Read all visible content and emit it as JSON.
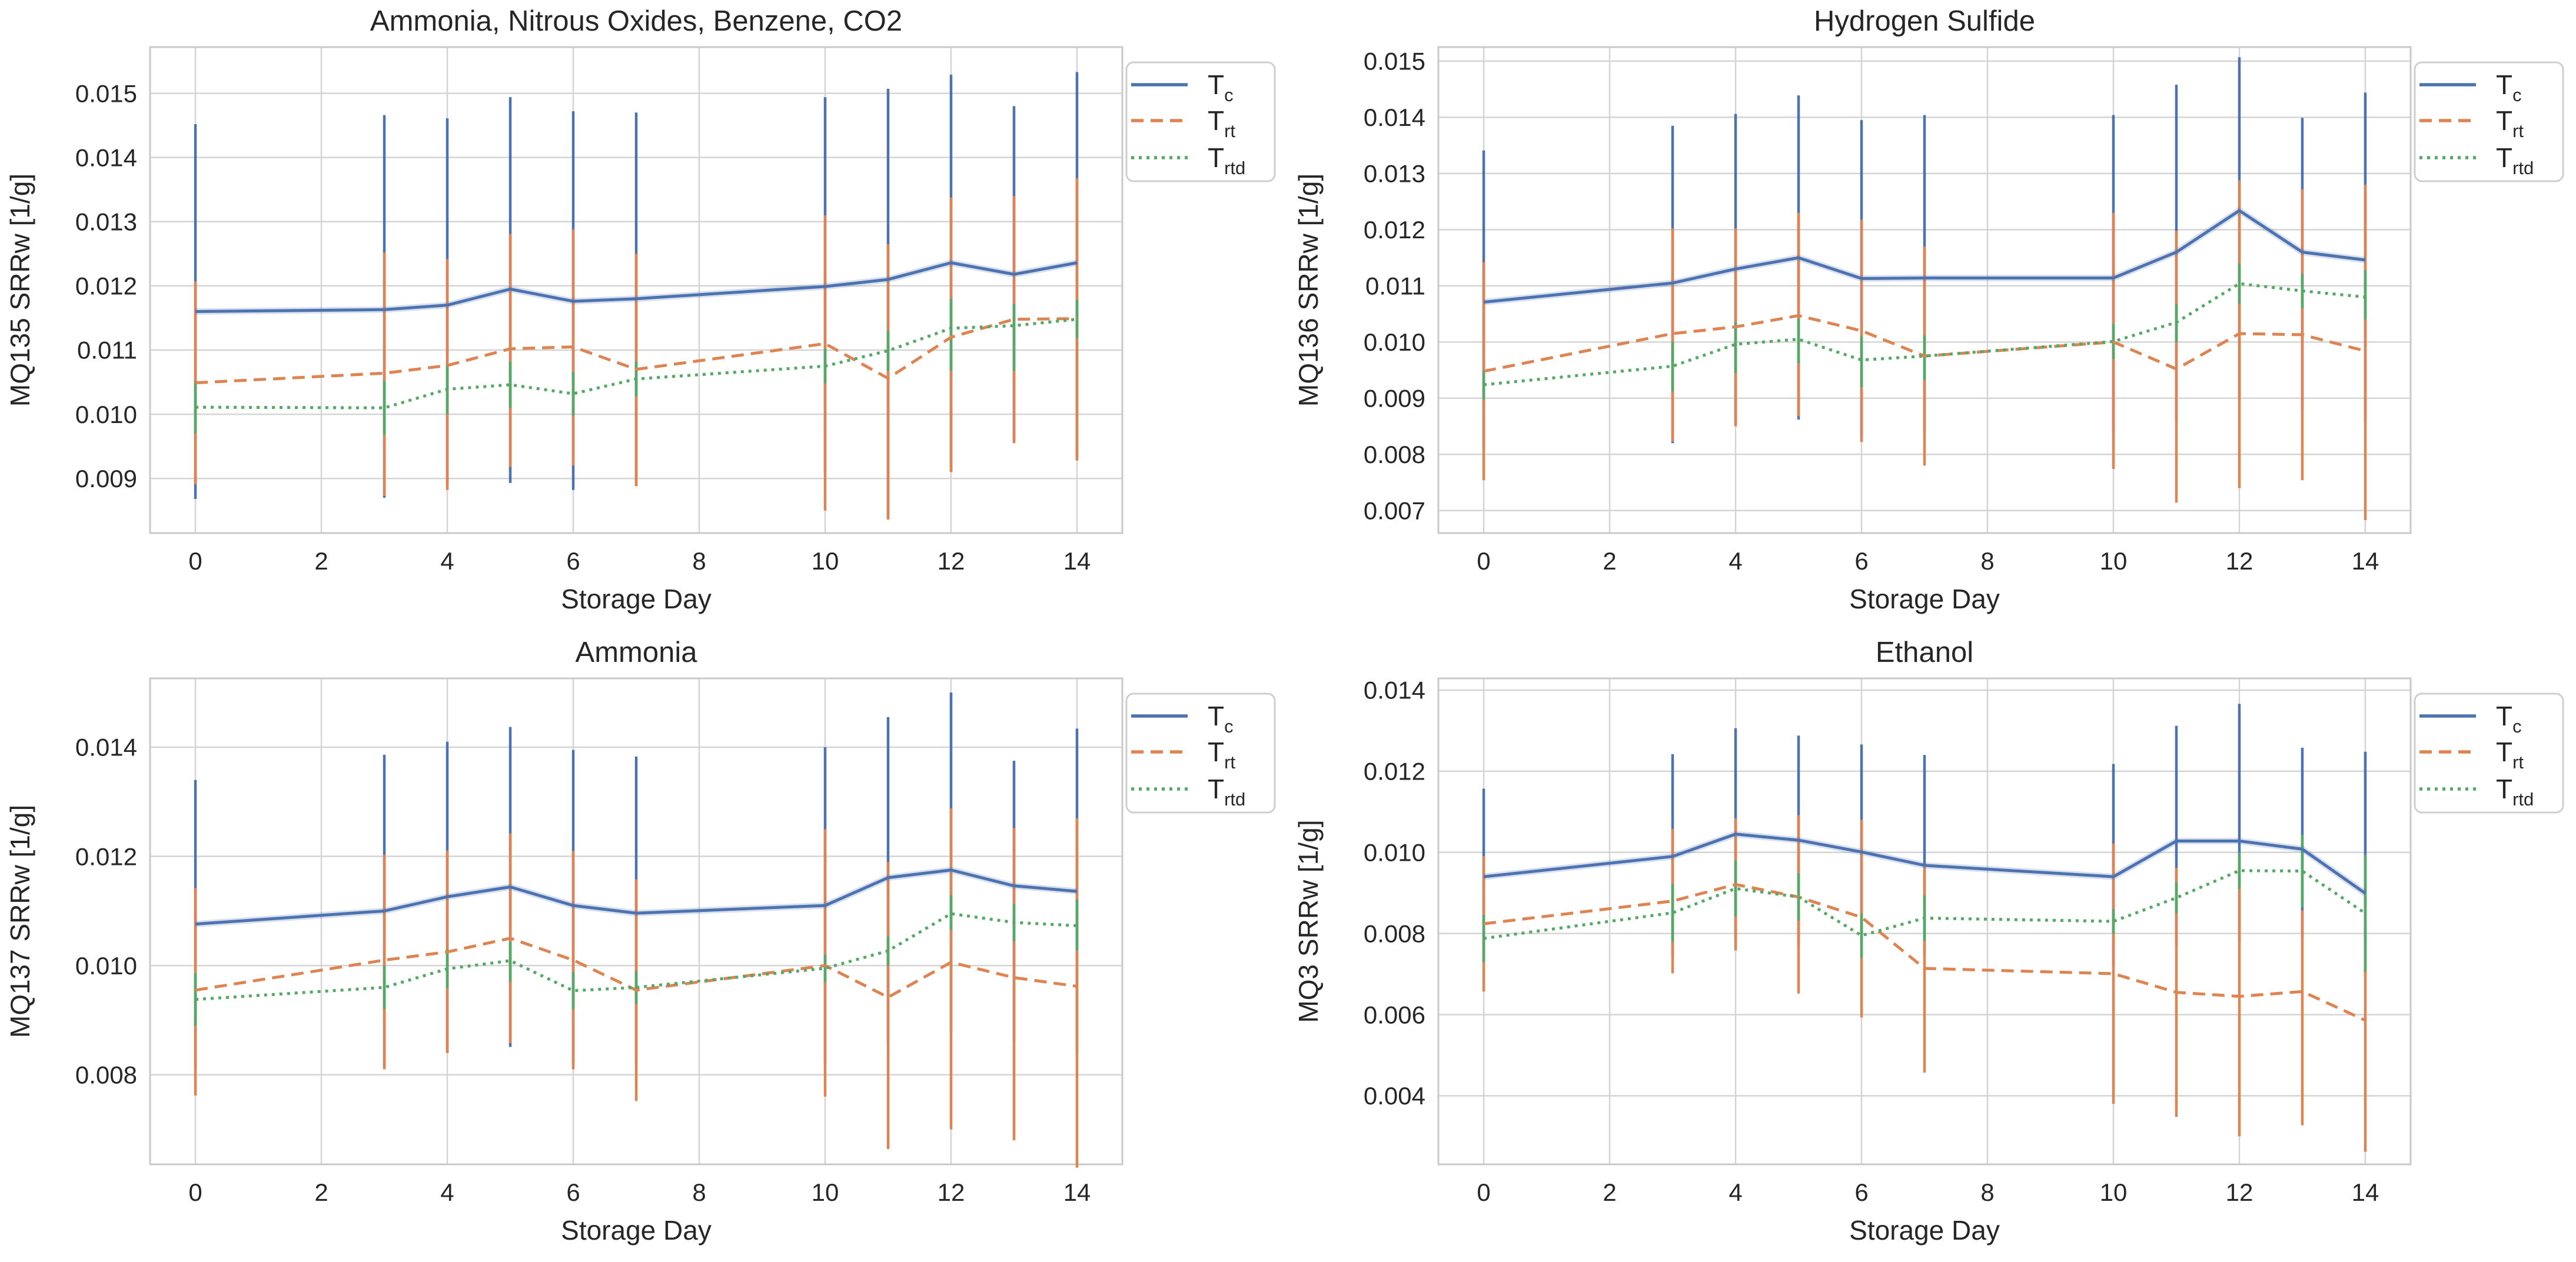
{
  "figure": {
    "background": "#ffffff",
    "grid_color": "#d4d4d4",
    "spine_color": "#c9c9c9",
    "text_color": "#262626"
  },
  "chart_data": {
    "type": "line",
    "grid": true,
    "legend_position": "outside-right-top",
    "xlabel": "Storage Day",
    "x": [
      0,
      3,
      4,
      5,
      6,
      7,
      10,
      11,
      12,
      13,
      14
    ],
    "xticks": [
      0,
      2,
      4,
      6,
      8,
      10,
      12,
      14
    ],
    "xtick_labels": [
      "0",
      "2",
      "4",
      "6",
      "8",
      "10",
      "12",
      "14"
    ],
    "xlim": [
      -0.72,
      14.72
    ],
    "series_meta": [
      {
        "id": "Tc",
        "legend_main": "T",
        "legend_sub": "c",
        "color": "#4C72B0",
        "style": "solid"
      },
      {
        "id": "Trt",
        "legend_main": "T",
        "legend_sub": "rt",
        "color": "#DD8452",
        "style": "dashed"
      },
      {
        "id": "Trtd",
        "legend_main": "T",
        "legend_sub": "rtd",
        "color": "#55A868",
        "style": "dotted"
      }
    ],
    "charts": [
      {
        "position": "top-left",
        "title": "Ammonia, Nitrous Oxides, Benzene, CO2",
        "ylabel": "MQ135 SRRw [1/g]",
        "ylim": [
          0.00815,
          0.01572
        ],
        "ytick_values": [
          0.009,
          0.01,
          0.011,
          0.012,
          0.013,
          0.014,
          0.015
        ],
        "ytick_labels": [
          "0.009",
          "0.010",
          "0.011",
          "0.012",
          "0.013",
          "0.014",
          "0.015"
        ],
        "series": {
          "Tc": {
            "values": [
              0.0116,
              0.01163,
              0.0117,
              0.01195,
              0.01176,
              0.0118,
              0.01199,
              0.0121,
              0.01236,
              0.01218,
              0.01236
            ],
            "err_lo": [
              0.00868,
              0.0087,
              0.0089,
              0.00893,
              0.00882,
              0.0089,
              0.0091,
              0.00838,
              0.00912,
              0.00958,
              0.0093
            ],
            "err_hi": [
              0.01452,
              0.01466,
              0.01461,
              0.01494,
              0.01472,
              0.0147,
              0.01494,
              0.01507,
              0.01529,
              0.0148,
              0.01533
            ]
          },
          "Trt": {
            "values": [
              0.01049,
              0.01064,
              0.01076,
              0.01102,
              0.01105,
              0.0107,
              0.0111,
              0.01056,
              0.0112,
              0.01148,
              0.01149
            ],
            "err_lo": [
              0.00891,
              0.00873,
              0.00882,
              0.00918,
              0.0092,
              0.00888,
              0.0085,
              0.00836,
              0.0091,
              0.00955,
              0.00928
            ],
            "err_hi": [
              0.01207,
              0.01252,
              0.01242,
              0.01281,
              0.01288,
              0.0125,
              0.0131,
              0.01265,
              0.01338,
              0.0134,
              0.01368
            ]
          },
          "Trtd": {
            "values": [
              0.01011,
              0.0101,
              0.01039,
              0.01046,
              0.01032,
              0.01055,
              0.01075,
              0.01099,
              0.01134,
              0.01138,
              0.01148
            ],
            "err_lo": [
              0.0097,
              0.00968,
              0.01,
              0.0101,
              0.00998,
              0.01028,
              0.01048,
              0.01068,
              0.01068,
              0.01068,
              0.01118
            ],
            "err_hi": [
              0.01052,
              0.01052,
              0.01078,
              0.01082,
              0.01066,
              0.01082,
              0.01102,
              0.0113,
              0.0118,
              0.01172,
              0.01178
            ]
          }
        }
      },
      {
        "position": "top-right",
        "title": "Hydrogen Sulfide",
        "ylabel": "MQ136 SRRw [1/g]",
        "ylim": [
          0.0066,
          0.01525
        ],
        "ytick_values": [
          0.007,
          0.008,
          0.009,
          0.01,
          0.011,
          0.012,
          0.013,
          0.014,
          0.015
        ],
        "ytick_labels": [
          "0.007",
          "0.008",
          "0.009",
          "0.010",
          "0.011",
          "0.012",
          "0.013",
          "0.014",
          "0.015"
        ],
        "series": {
          "Tc": {
            "values": [
              0.01071,
              0.01105,
              0.0113,
              0.0115,
              0.01113,
              0.01114,
              0.01114,
              0.0116,
              0.01234,
              0.0116,
              0.01146
            ],
            "err_lo": [
              0.00808,
              0.0082,
              0.00855,
              0.00862,
              0.0083,
              0.00838,
              0.0084,
              0.00858,
              0.009,
              0.0088,
              0.00856
            ],
            "err_hi": [
              0.01341,
              0.01385,
              0.01406,
              0.01439,
              0.01395,
              0.01404,
              0.01404,
              0.01458,
              0.01507,
              0.01399,
              0.01444
            ]
          },
          "Trt": {
            "values": [
              0.00948,
              0.01015,
              0.01027,
              0.01047,
              0.0102,
              0.00975,
              0.01,
              0.00952,
              0.01015,
              0.01013,
              0.00984
            ],
            "err_lo": [
              0.00754,
              0.00823,
              0.0085,
              0.00868,
              0.00822,
              0.0078,
              0.00774,
              0.00714,
              0.0074,
              0.00754,
              0.00683
            ],
            "err_hi": [
              0.01142,
              0.01202,
              0.01202,
              0.0123,
              0.01218,
              0.0117,
              0.0123,
              0.01198,
              0.01288,
              0.01272,
              0.0128
            ]
          },
          "Trtd": {
            "values": [
              0.00924,
              0.00957,
              0.00996,
              0.01005,
              0.00968,
              0.00975,
              0.01001,
              0.01035,
              0.01104,
              0.01091,
              0.0108
            ],
            "err_lo": [
              0.00898,
              0.00912,
              0.00945,
              0.00962,
              0.0092,
              0.00932,
              0.0097,
              0.01,
              0.01068,
              0.0106,
              0.0104
            ],
            "err_hi": [
              0.0095,
              0.01,
              0.01035,
              0.01042,
              0.0101,
              0.01012,
              0.01032,
              0.01068,
              0.0114,
              0.01122,
              0.01128
            ]
          }
        }
      },
      {
        "position": "bottom-left",
        "title": "Ammonia",
        "ylabel": "MQ137 SRRw [1/g]",
        "ylim": [
          0.00636,
          0.01526
        ],
        "ytick_values": [
          0.008,
          0.01,
          0.012,
          0.014
        ],
        "ytick_labels": [
          "0.008",
          "0.010",
          "0.012",
          "0.014"
        ],
        "series": {
          "Tc": {
            "values": [
              0.01076,
              0.011,
              0.01126,
              0.01144,
              0.0111,
              0.01096,
              0.0111,
              0.01161,
              0.01175,
              0.01146,
              0.01136
            ],
            "err_lo": [
              0.00812,
              0.00812,
              0.0084,
              0.00851,
              0.00822,
              0.0082,
              0.00822,
              0.0086,
              0.0088,
              0.0086,
              0.0084
            ],
            "err_hi": [
              0.0134,
              0.01386,
              0.0141,
              0.01437,
              0.01395,
              0.01383,
              0.014,
              0.01455,
              0.015,
              0.01375,
              0.01434
            ]
          },
          "Trt": {
            "values": [
              0.00955,
              0.0101,
              0.01025,
              0.0105,
              0.0101,
              0.00955,
              0.01,
              0.00942,
              0.01006,
              0.00978,
              0.00962
            ],
            "err_lo": [
              0.00762,
              0.0081,
              0.0084,
              0.00858,
              0.0081,
              0.00752,
              0.0076,
              0.00664,
              0.007,
              0.0068,
              0.0063
            ],
            "err_hi": [
              0.01142,
              0.01203,
              0.01211,
              0.01242,
              0.0121,
              0.01158,
              0.0125,
              0.0119,
              0.01288,
              0.01252,
              0.0127
            ]
          },
          "Trtd": {
            "values": [
              0.00938,
              0.0096,
              0.00994,
              0.01009,
              0.00954,
              0.0096,
              0.00995,
              0.01027,
              0.01095,
              0.01079,
              0.01073
            ],
            "err_lo": [
              0.0089,
              0.0092,
              0.00958,
              0.0097,
              0.0092,
              0.0093,
              0.0097,
              0.01,
              0.01065,
              0.01044,
              0.01028
            ],
            "err_hi": [
              0.00986,
              0.01,
              0.0103,
              0.01044,
              0.00988,
              0.0099,
              0.0102,
              0.01053,
              0.01129,
              0.01113,
              0.01121
            ]
          }
        }
      },
      {
        "position": "bottom-right",
        "title": "Ethanol",
        "ylabel": "MQ3 SRRw [1/g]",
        "ylim": [
          0.00231,
          0.01429
        ],
        "ytick_values": [
          0.004,
          0.006,
          0.008,
          0.01,
          0.012,
          0.014
        ],
        "ytick_labels": [
          "0.004",
          "0.006",
          "0.008",
          "0.010",
          "0.012",
          "0.014"
        ],
        "series": {
          "Tc": {
            "values": [
              0.0094,
              0.0099,
              0.01045,
              0.0103,
              0.01001,
              0.00968,
              0.0094,
              0.01028,
              0.01028,
              0.01008,
              0.00899
            ],
            "err_lo": [
              0.00728,
              0.00742,
              0.0079,
              0.00772,
              0.00778,
              0.00748,
              0.00718,
              0.0077,
              0.0078,
              0.0079,
              0.00698
            ],
            "err_hi": [
              0.01157,
              0.01242,
              0.01306,
              0.01288,
              0.01266,
              0.0124,
              0.01218,
              0.01312,
              0.01366,
              0.01258,
              0.01248
            ]
          },
          "Trt": {
            "values": [
              0.00824,
              0.0088,
              0.00921,
              0.0089,
              0.0084,
              0.00714,
              0.00701,
              0.00655,
              0.00645,
              0.00657,
              0.00586
            ],
            "err_lo": [
              0.00657,
              0.00702,
              0.00758,
              0.00652,
              0.00593,
              0.00457,
              0.0038,
              0.00348,
              0.003,
              0.00327,
              0.00262
            ],
            "err_hi": [
              0.00991,
              0.01058,
              0.01084,
              0.01092,
              0.01081,
              0.00971,
              0.01022,
              0.00962,
              0.0099,
              0.00857,
              0.0094
            ]
          },
          "Trtd": {
            "values": [
              0.00788,
              0.00851,
              0.00911,
              0.0089,
              0.00795,
              0.00838,
              0.0083,
              0.00888,
              0.00955,
              0.00954,
              0.0085
            ],
            "err_lo": [
              0.0073,
              0.0078,
              0.00842,
              0.00832,
              0.0074,
              0.00782,
              0.008,
              0.0085,
              0.0091,
              0.00864,
              0.00706
            ],
            "err_hi": [
              0.00846,
              0.00922,
              0.0098,
              0.00948,
              0.0085,
              0.00894,
              0.0086,
              0.00926,
              0.01,
              0.01044,
              0.00994
            ]
          }
        }
      }
    ]
  }
}
